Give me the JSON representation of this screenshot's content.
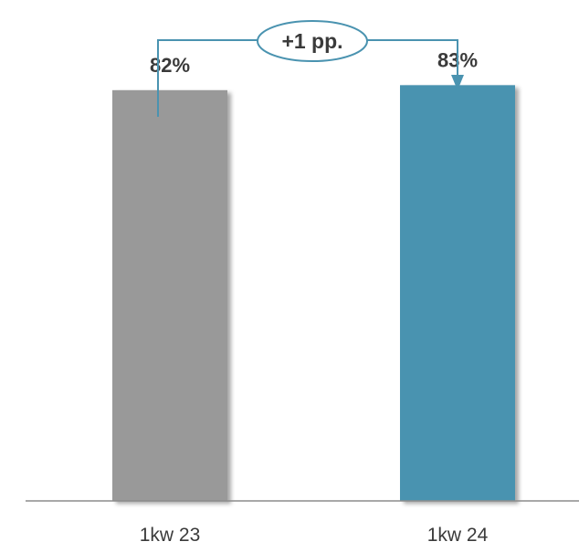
{
  "chart_data": {
    "type": "bar",
    "categories": [
      "1kw 23",
      "1kw 24"
    ],
    "values": [
      82,
      83
    ],
    "value_labels": [
      "82%",
      "83%"
    ],
    "ylim": [
      0,
      100
    ],
    "grid": false,
    "bar_colors": [
      "#999999",
      "#4a93b0"
    ],
    "annotation": {
      "text": "+1 pp.",
      "from": "1kw 23",
      "to": "1kw 24",
      "color": "#4a93b0"
    }
  }
}
